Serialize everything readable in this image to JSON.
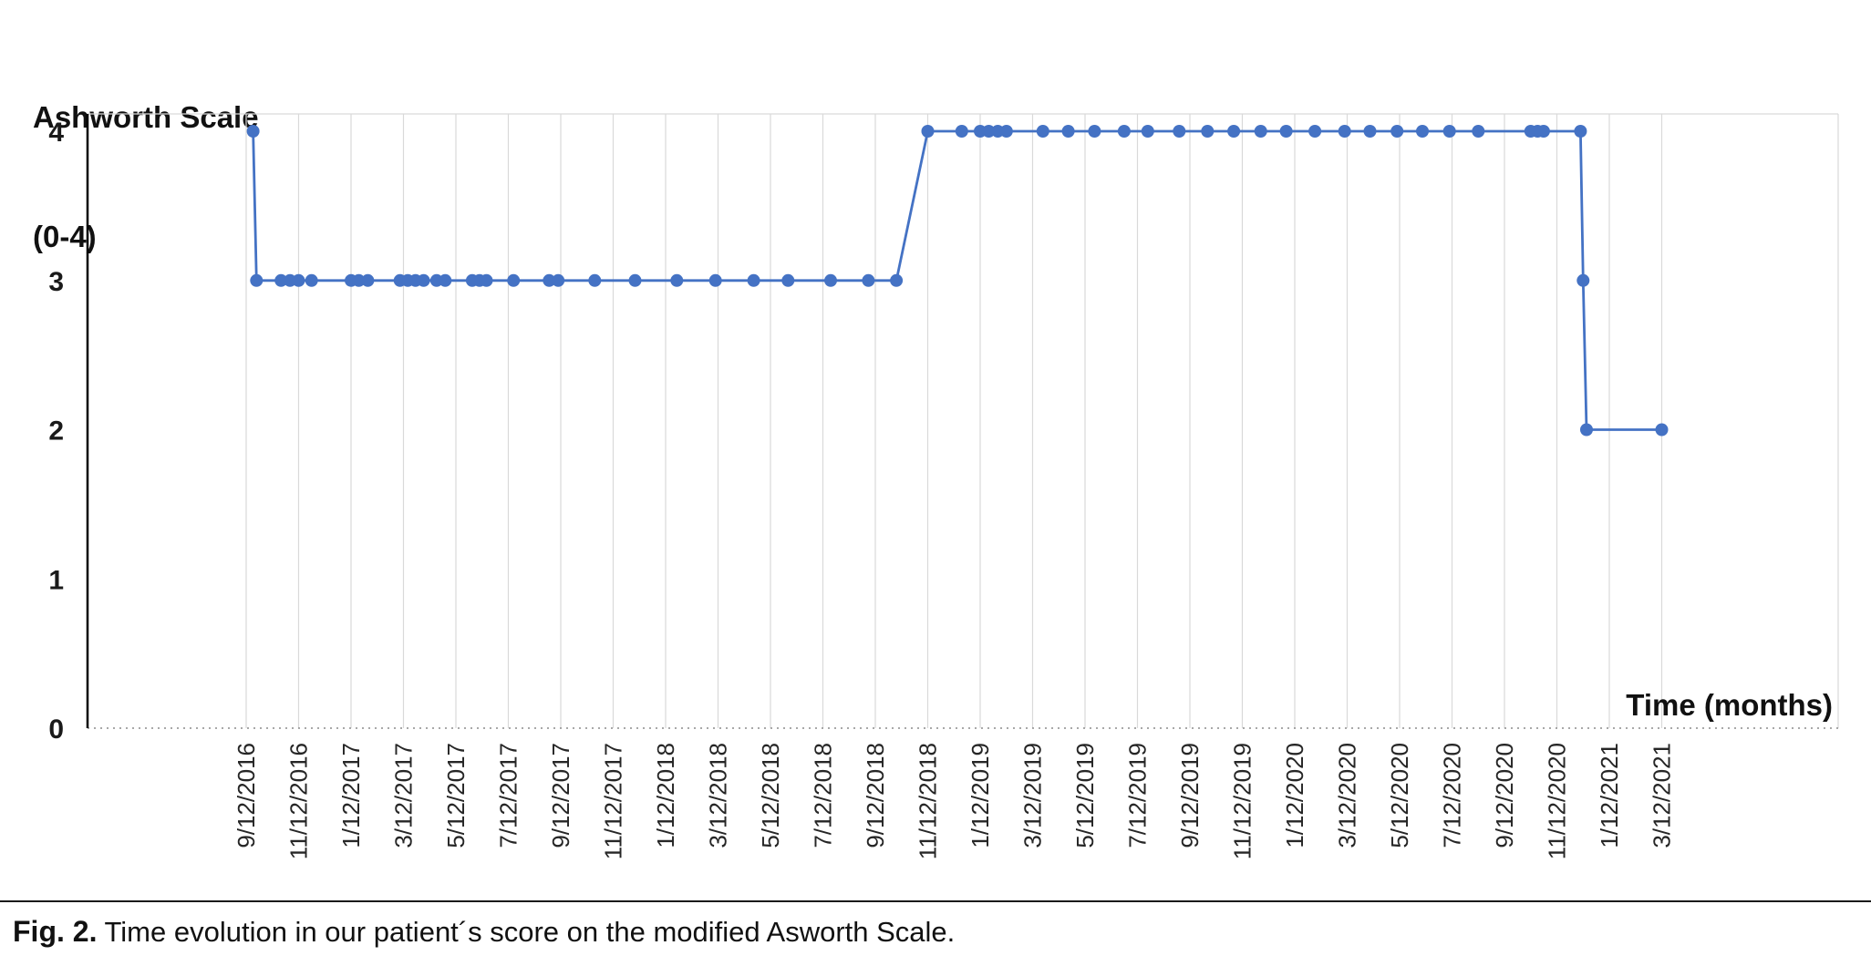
{
  "chart": {
    "title_line1": "Ashworth Scale",
    "title_line2": "(0-4)",
    "xlabel": "Time (months)"
  },
  "caption": {
    "label": "Fig. 2.",
    "text": " Time evolution in our patient´s score on the modified Asworth Scale."
  },
  "chart_data": {
    "type": "line",
    "title": "Ashworth Scale (0-4)",
    "xlabel": "Time (months)",
    "ylabel": "Ashworth Scale (0-4)",
    "ylim": [
      0,
      4
    ],
    "yticks": [
      0,
      1,
      2,
      3,
      4
    ],
    "grid": "vertical",
    "legend": "none",
    "line_color": "#4472C4",
    "grid_color": "#d9d9d9",
    "axis_color": "#000000",
    "zero_line_color": "#8c8c8c",
    "x_tick_labels": [
      "9/12/2016",
      "11/12/2016",
      "1/12/2017",
      "3/12/2017",
      "5/12/2017",
      "7/12/2017",
      "9/12/2017",
      "11/12/2017",
      "1/12/2018",
      "3/12/2018",
      "5/12/2018",
      "7/12/2018",
      "9/12/2018",
      "11/12/2018",
      "1/12/2019",
      "3/12/2019",
      "5/12/2019",
      "7/12/2019",
      "9/12/2019",
      "11/12/2019",
      "1/12/2020",
      "3/12/2020",
      "5/12/2020",
      "7/12/2020",
      "9/12/2020",
      "11/12/2020",
      "1/12/2021",
      "3/12/2021"
    ],
    "points": [
      [
        "9/20/2016",
        4
      ],
      [
        "9/24/2016",
        3
      ],
      [
        "10/22/2016",
        3
      ],
      [
        "11/2/2016",
        3
      ],
      [
        "11/12/2016",
        3
      ],
      [
        "11/27/2016",
        3
      ],
      [
        "1/12/2017",
        3
      ],
      [
        "1/21/2017",
        3
      ],
      [
        "2/1/2017",
        3
      ],
      [
        "3/8/2017",
        3
      ],
      [
        "3/17/2017",
        3
      ],
      [
        "3/26/2017",
        3
      ],
      [
        "4/5/2017",
        3
      ],
      [
        "4/20/2017",
        3
      ],
      [
        "4/30/2017",
        3
      ],
      [
        "5/31/2017",
        3
      ],
      [
        "6/9/2017",
        3
      ],
      [
        "6/17/2017",
        3
      ],
      [
        "7/18/2017",
        3
      ],
      [
        "8/29/2017",
        3
      ],
      [
        "9/9/2017",
        3
      ],
      [
        "10/21/2017",
        3
      ],
      [
        "12/7/2017",
        3
      ],
      [
        "1/25/2018",
        3
      ],
      [
        "3/9/2018",
        3
      ],
      [
        "4/23/2018",
        3
      ],
      [
        "6/2/2018",
        3
      ],
      [
        "7/21/2018",
        3
      ],
      [
        "9/4/2018",
        3
      ],
      [
        "10/6/2018",
        3
      ],
      [
        "11/12/2018",
        4
      ],
      [
        "12/21/2018",
        4
      ],
      [
        "1/12/2019",
        4
      ],
      [
        "1/22/2019",
        4
      ],
      [
        "2/2/2019",
        4
      ],
      [
        "2/12/2019",
        4
      ],
      [
        "3/24/2019",
        4
      ],
      [
        "4/23/2019",
        4
      ],
      [
        "5/23/2019",
        4
      ],
      [
        "6/27/2019",
        4
      ],
      [
        "7/24/2019",
        4
      ],
      [
        "8/30/2019",
        4
      ],
      [
        "10/2/2019",
        4
      ],
      [
        "11/2/2019",
        4
      ],
      [
        "12/3/2019",
        4
      ],
      [
        "1/2/2020",
        4
      ],
      [
        "2/5/2020",
        4
      ],
      [
        "3/9/2020",
        4
      ],
      [
        "4/8/2020",
        4
      ],
      [
        "5/9/2020",
        4
      ],
      [
        "6/8/2020",
        4
      ],
      [
        "7/9/2020",
        4
      ],
      [
        "8/12/2020",
        4
      ],
      [
        "10/12/2020",
        4
      ],
      [
        "10/20/2020",
        4
      ],
      [
        "10/27/2020",
        4
      ],
      [
        "12/9/2020",
        4
      ],
      [
        "12/12/2020",
        3
      ],
      [
        "12/16/2020",
        2
      ],
      [
        "3/12/2021",
        2
      ]
    ]
  }
}
